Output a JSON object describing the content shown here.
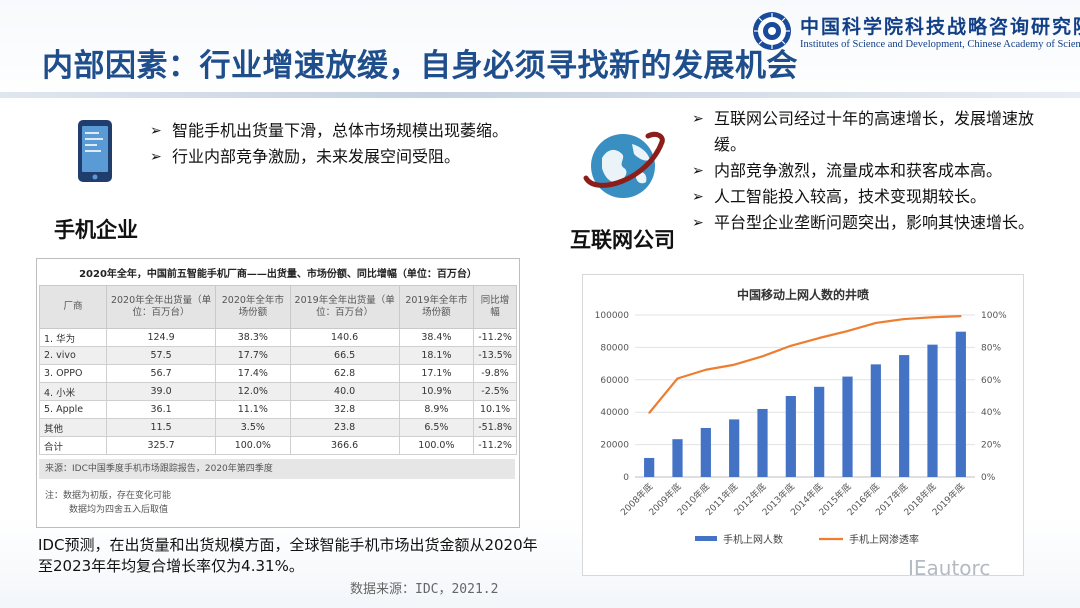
{
  "header": {
    "title": "内部因素：行业增速放缓，自身必须寻找新的发展机会",
    "org_cn": "中国科学院科技战略咨询研究院",
    "org_en": "Institutes of Science and Development, Chinese Academy of Sciences"
  },
  "phone_section": {
    "label": "手机企业",
    "bullets": [
      "智能手机出货量下滑，总体市场规模出现萎缩。",
      "行业内部竞争激励，未来发展空间受阻。"
    ]
  },
  "internet_section": {
    "label": "互联网公司",
    "bullets": [
      "互联网公司经过十年的高速增长，发展增速放缓。",
      "内部竞争激烈，流量成本和获客成本高。",
      "人工智能投入较高，技术变现期较长。",
      "平台型企业垄断问题突出，影响其快速增长。"
    ]
  },
  "arrow": "➢",
  "table": {
    "caption": "2020年全年，中国前五智能手机厂商——出货量、市场份额、同比增幅（单位：百万台）",
    "headers": [
      "厂商",
      "2020年全年出货量（单位：百万台）",
      "2020年全年市场份额",
      "2019年全年出货量（单位：百万台）",
      "2019年全年市场份额",
      "同比增幅"
    ],
    "rows": [
      [
        "1. 华为",
        "124.9",
        "38.3%",
        "140.6",
        "38.4%",
        "-11.2%"
      ],
      [
        "2. vivo",
        "57.5",
        "17.7%",
        "66.5",
        "18.1%",
        "-13.5%"
      ],
      [
        "3. OPPO",
        "56.7",
        "17.4%",
        "62.8",
        "17.1%",
        "-9.8%"
      ],
      [
        "4. 小米",
        "39.0",
        "12.0%",
        "40.0",
        "10.9%",
        "-2.5%"
      ],
      [
        "5. Apple",
        "36.1",
        "11.1%",
        "32.8",
        "8.9%",
        "10.1%"
      ],
      [
        "其他",
        "11.5",
        "3.5%",
        "23.8",
        "6.5%",
        "-51.8%"
      ],
      [
        "合计",
        "325.7",
        "100.0%",
        "366.6",
        "100.0%",
        "-11.2%"
      ]
    ],
    "source": "来源：IDC中国季度手机市场跟踪报告，2020年第四季度",
    "note1": "注：数据为初版，存在变化可能",
    "note2": "数据均为四舍五入后取值"
  },
  "bottom_text": "IDC预测，在出货量和出货规模方面，全球智能手机市场出货金额从2020年至2023年年均复合增长率仅为4.31%。",
  "data_source": "数据来源：IDC，2021.2",
  "watermark": "IEautorc",
  "chart_data": {
    "type": "bar+line",
    "title": "中国移动上网人数的井喷",
    "categories": [
      "2008年底",
      "2009年底",
      "2010年底",
      "2011年底",
      "2012年底",
      "2013年底",
      "2014年底",
      "2015年底",
      "2016年底",
      "2017年底",
      "2018年底",
      "2019年底"
    ],
    "series": [
      {
        "name": "手机上网人数",
        "type": "bar",
        "axis": "left",
        "color": "#4472c4",
        "values": [
          11760,
          23344,
          30274,
          35558,
          41997,
          50006,
          55678,
          61981,
          69531,
          75265,
          81698,
          89700
        ]
      },
      {
        "name": "手机上网渗透率",
        "type": "line",
        "axis": "right",
        "color": "#ed7d31",
        "values": [
          39.5,
          60.8,
          66.2,
          69.3,
          74.5,
          81.0,
          85.8,
          90.1,
          95.1,
          97.5,
          98.6,
          99.3
        ]
      }
    ],
    "y_left": {
      "min": 0,
      "max": 100000,
      "ticks": [
        "0",
        "20000",
        "40000",
        "60000",
        "80000",
        "100000"
      ]
    },
    "y_right": {
      "min": 0,
      "max": 100,
      "ticks": [
        "0%",
        "20%",
        "40%",
        "60%",
        "80%",
        "100%"
      ]
    },
    "legend_position": "bottom"
  }
}
